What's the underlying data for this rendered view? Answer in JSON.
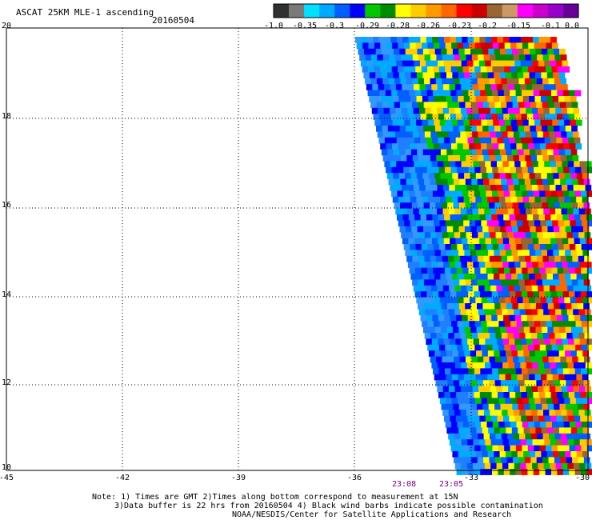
{
  "title": "ASCAT 25KM MLE-1 ascending",
  "date": "20160504",
  "colorbar": {
    "labels": [
      "-1.0",
      "-0.35",
      "-0.3",
      "-0.29",
      "-0.28",
      "-0.26",
      "-0.23",
      "-0.2",
      "-0.15",
      "-0.1",
      "0.0"
    ],
    "colors": [
      "#303030",
      "#7a7a7a",
      "#00e0ff",
      "#00aaff",
      "#0060ff",
      "#0000ff",
      "#00c800",
      "#008c00",
      "#ffff00",
      "#ffcc00",
      "#ff9900",
      "#ff6600",
      "#ff0000",
      "#cc0000",
      "#996633",
      "#cc9966",
      "#ff00ff",
      "#cc00cc",
      "#9900cc",
      "#660099"
    ]
  },
  "map": {
    "lat_labels": [
      "20",
      "18",
      "16",
      "14",
      "12",
      "10"
    ],
    "lon_labels": [
      "-45",
      "-42",
      "-39",
      "-36",
      "-33",
      "-30"
    ],
    "time_labels": [
      "23:08",
      "23:05"
    ]
  },
  "notes": [
    "Note: 1) Times are GMT 2)Times along bottom correspond to measurement at 15N",
    "3)Data buffer is 22 hrs from 20160504 4) Black wind barbs indicate possible contamination",
    "NOAA/NESDIS/Center for Satellite Applications and Research"
  ]
}
